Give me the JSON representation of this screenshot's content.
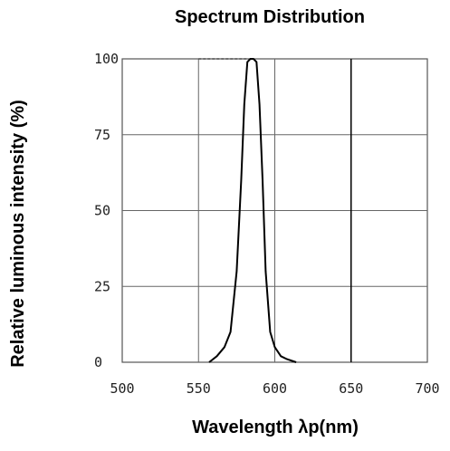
{
  "chart_data": {
    "type": "line",
    "title": "Spectrum Distribution",
    "xlabel": "Wavelength λp(nm)",
    "ylabel": "Relative luminous intensity (%)",
    "xlim": [
      500,
      700
    ],
    "ylim": [
      0,
      100
    ],
    "x_ticks": [
      "500",
      "550",
      "600",
      "650",
      "700"
    ],
    "y_ticks": [
      "100",
      "75",
      "50",
      "25",
      "0"
    ],
    "grid": true,
    "series": [
      {
        "x": [
          557,
          562,
          567,
          571,
          575,
          578,
          580,
          582,
          584,
          585,
          586,
          588,
          590,
          592,
          594,
          597,
          600,
          604,
          608,
          614
        ],
        "y": [
          0,
          2,
          5,
          10,
          30,
          60,
          85,
          99,
          100,
          100,
          100,
          99,
          85,
          60,
          30,
          10,
          5,
          2,
          1,
          0
        ]
      }
    ],
    "reference_line": {
      "style": "dashed",
      "y": 100,
      "x_start": 550,
      "x_end": 582
    },
    "colors": {
      "line": "#000000",
      "grid": "#666666",
      "frame": "#555555"
    }
  }
}
